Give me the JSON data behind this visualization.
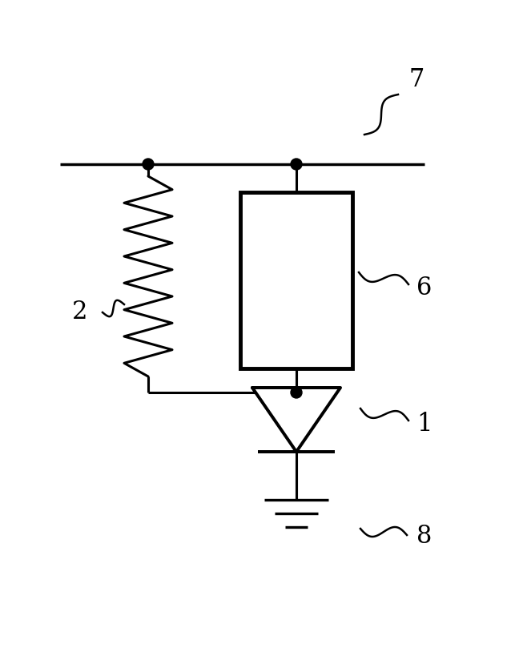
{
  "bg_color": "#ffffff",
  "line_color": "#000000",
  "line_width": 2.2,
  "label_7": "7",
  "label_6": "6",
  "label_2": "2",
  "label_1": "1",
  "label_8": "8",
  "fig_width": 6.48,
  "fig_height": 8.19,
  "dpi": 100
}
